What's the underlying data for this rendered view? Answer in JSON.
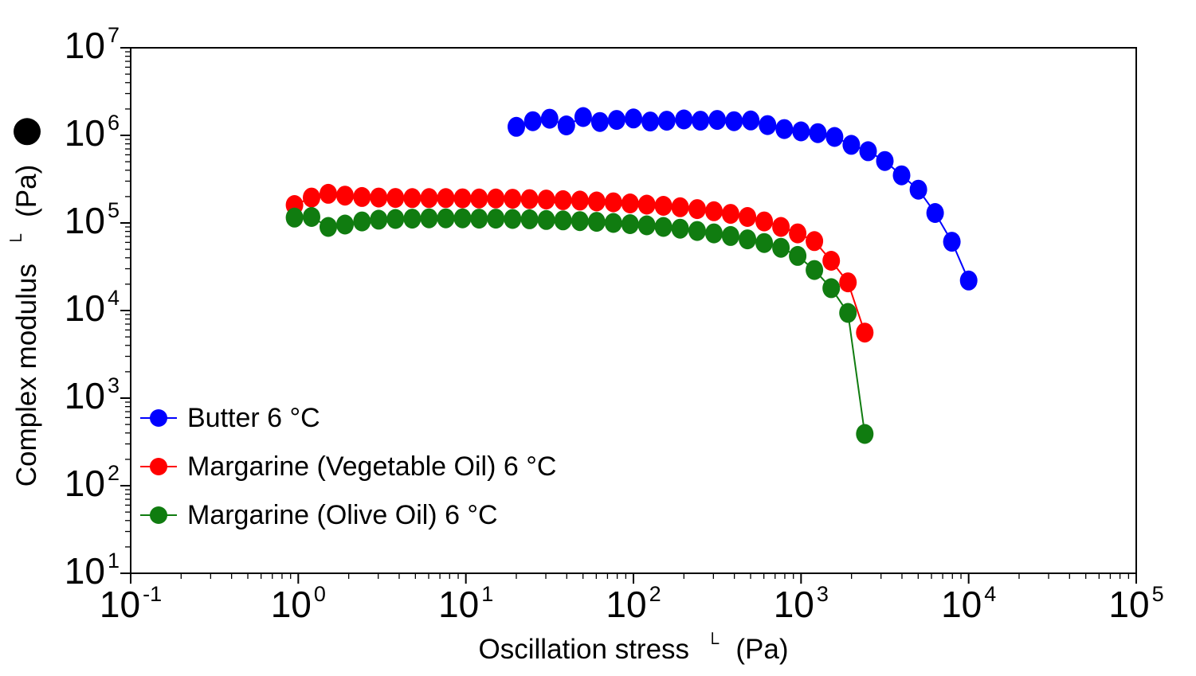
{
  "chart_data": {
    "type": "scatter",
    "title": "",
    "xlabel": {
      "text": "Oscillation stress",
      "symbol": "└",
      "unit": "(Pa)"
    },
    "ylabel": {
      "text": "Complex modulus",
      "symbol": "└",
      "unit": "(Pa)",
      "series_marker_color": "#000000"
    },
    "x_axis": {
      "scale": "log",
      "tick_base": "10",
      "tick_exponents": [
        -1,
        0,
        1,
        2,
        3,
        4,
        5
      ],
      "min": 0.1,
      "max": 100000
    },
    "y_axis": {
      "scale": "log",
      "tick_base": "10",
      "tick_exponents": [
        1,
        2,
        3,
        4,
        5,
        6,
        7
      ],
      "min": 10,
      "max": 10000000
    },
    "grid": false,
    "legend_position": "inside-bottom-left",
    "series": [
      {
        "name": "Butter 6 °C",
        "color": "#0000FF",
        "x": [
          20,
          25.1,
          31.6,
          39.8,
          50.1,
          63.1,
          79.4,
          100,
          126,
          158,
          200,
          251,
          316,
          398,
          501,
          631,
          794,
          1000,
          1259,
          1585,
          1995,
          2512,
          3162,
          3981,
          5012,
          6310,
          7943,
          10000
        ],
        "y": [
          1250000.0,
          1450000.0,
          1550000.0,
          1300000.0,
          1620000.0,
          1420000.0,
          1500000.0,
          1560000.0,
          1440000.0,
          1470000.0,
          1520000.0,
          1470000.0,
          1500000.0,
          1450000.0,
          1480000.0,
          1310000.0,
          1180000.0,
          1110000.0,
          1060000.0,
          960000.0,
          780000.0,
          660000.0,
          510000.0,
          350000.0,
          240000.0,
          130000.0,
          61000.0,
          22000.0
        ]
      },
      {
        "name": "Margarine (Vegetable Oil) 6 °C",
        "color": "#FF0000",
        "x": [
          0.95,
          1.2,
          1.51,
          1.9,
          2.4,
          3.02,
          3.8,
          4.79,
          6.03,
          7.59,
          9.55,
          12,
          15.1,
          19,
          24,
          30.2,
          38,
          47.9,
          60.3,
          75.9,
          95.5,
          120,
          151,
          190,
          240,
          302,
          380,
          479,
          603,
          759,
          955,
          1202,
          1513,
          1905,
          2399
        ],
        "y": [
          160000.0,
          195000.0,
          215000.0,
          205000.0,
          198000.0,
          195000.0,
          193000.0,
          192000.0,
          192000.0,
          192000.0,
          191000.0,
          190000.0,
          190000.0,
          189000.0,
          187000.0,
          185000.0,
          182000.0,
          180000.0,
          176000.0,
          172000.0,
          167000.0,
          162000.0,
          157000.0,
          151000.0,
          144000.0,
          136000.0,
          127000.0,
          117000.0,
          104000.0,
          90000.0,
          76000.0,
          62000.0,
          37000.0,
          21000.0,
          5600.0
        ]
      },
      {
        "name": "Margarine (Olive Oil) 6 °C",
        "color": "#107C10",
        "x": [
          0.95,
          1.2,
          1.51,
          1.9,
          2.4,
          3.02,
          3.8,
          4.79,
          6.03,
          7.59,
          9.55,
          12,
          15.1,
          19,
          24,
          30.2,
          38,
          47.9,
          60.3,
          75.9,
          95.5,
          120,
          151,
          190,
          240,
          302,
          380,
          479,
          603,
          759,
          955,
          1202,
          1513,
          1905,
          2399
        ],
        "y": [
          115000.0,
          117000.0,
          90000.0,
          96000.0,
          104000.0,
          109000.0,
          111000.0,
          112000.0,
          113000.0,
          113000.0,
          113000.0,
          112000.0,
          112000.0,
          111000.0,
          110000.0,
          108000.0,
          107000.0,
          105000.0,
          103000.0,
          100000.0,
          97000.0,
          94000.0,
          90000.0,
          86000.0,
          81000.0,
          76000.0,
          71000.0,
          65000.0,
          59000.0,
          52000.0,
          42000.0,
          29000.0,
          18000.0,
          9400.0,
          390.0
        ]
      }
    ]
  },
  "legend": {
    "items": [
      {
        "label": "Butter 6 °C",
        "color": "#0000FF"
      },
      {
        "label": "Margarine (Vegetable Oil) 6 °C",
        "color": "#FF0000"
      },
      {
        "label": "Margarine (Olive Oil) 6 °C",
        "color": "#107C10"
      }
    ]
  }
}
